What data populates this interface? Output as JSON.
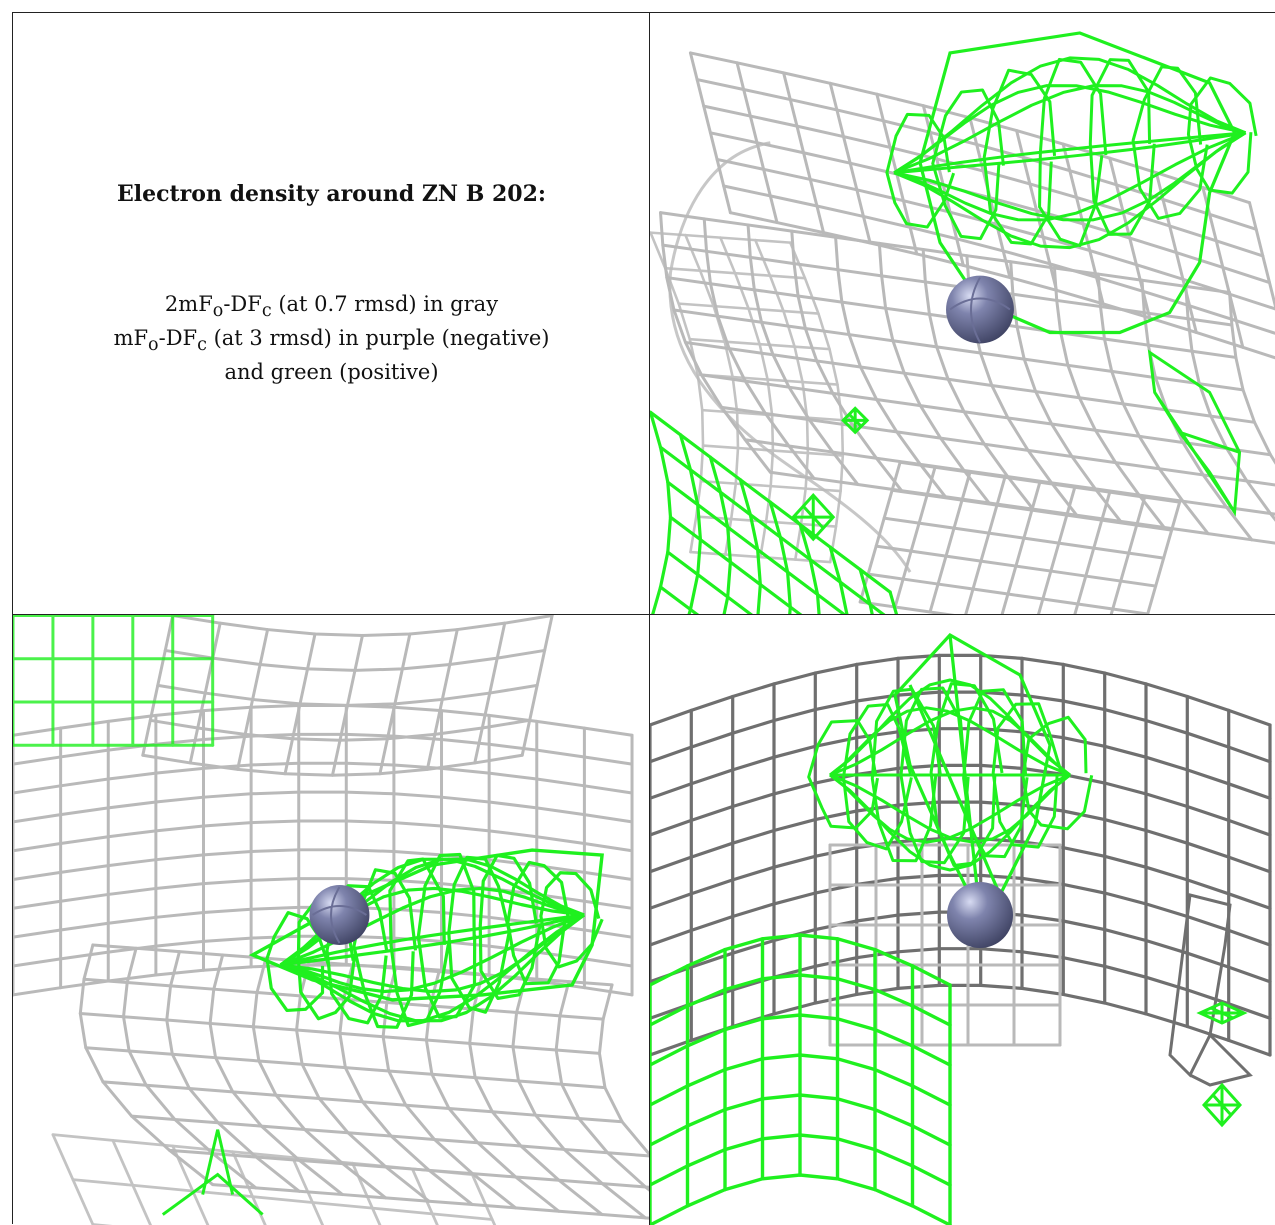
{
  "caption": {
    "title": "Electron density around ZN B 202:",
    "line1": {
      "a": "2mF",
      "o": "o",
      "b": "-DF",
      "c": "c",
      "tail": " (at 0.7 rmsd) in gray"
    },
    "line2": {
      "a": "mF",
      "o": "o",
      "b": "-DF",
      "c": "c",
      "tail": " (at 3 rmsd) in purple (negative)"
    },
    "line3": "and green (positive)"
  },
  "colors": {
    "map_2fofc": "#b9b9b9",
    "map_2fofc_dark": "#6f6f6f",
    "map_fofc_positive": "#1ff01f",
    "zinc_atom": "#7f84ad"
  },
  "panels": [
    {
      "id": "view-1",
      "atom": "zinc-sphere"
    },
    {
      "id": "view-2",
      "atom": "zinc-sphere"
    },
    {
      "id": "view-3",
      "atom": "zinc-sphere"
    }
  ]
}
